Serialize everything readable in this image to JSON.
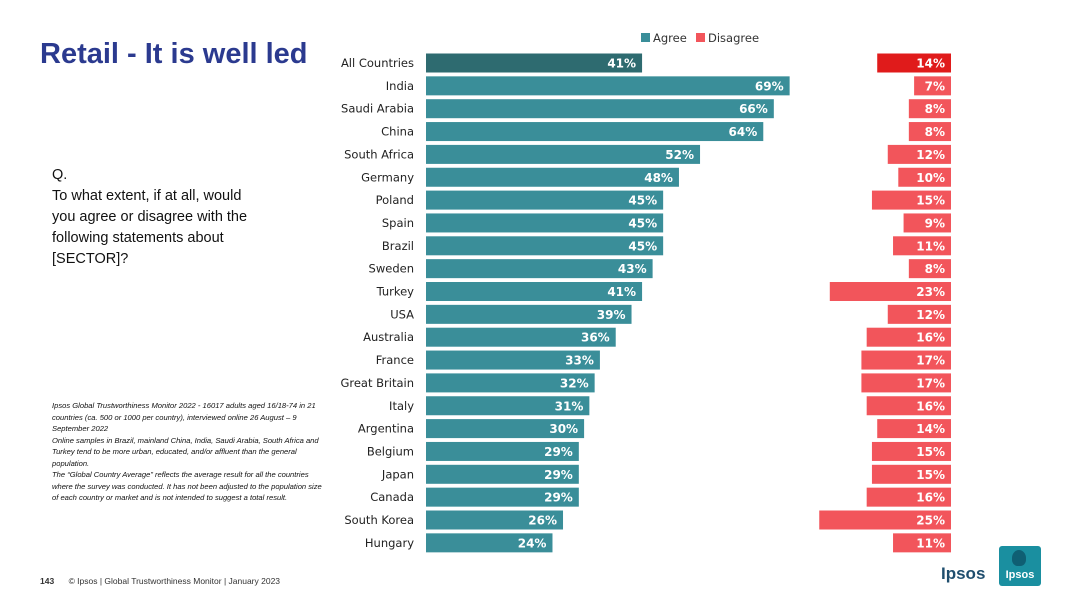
{
  "slide": {
    "title": "Retail - It is well led",
    "question": [
      "Q.",
      "To what extent, if at all, would",
      "you agree or disagree with the",
      "following statements about",
      "[SECTOR]?"
    ],
    "notes": [
      "Ipsos Global Trustworthiness Monitor 2022 - 16017 adults aged 16/18-74 in 21 countries (ca. 500 or 1000 per country), interviewed online 26 August – 9 September 2022",
      "Online samples in Brazil, mainland China, India, Saudi Arabia, South Africa and Turkey tend to be more urban, educated, and/or affluent than the general population.",
      "The “Global Country Average” reflects the average result for all the countries where the survey was conducted. It has not been adjusted to the population size of each country or market and is not intended to suggest a total result."
    ],
    "page_number": "143",
    "footer": "© Ipsos | Global Trustworthiness Monitor | January 2023",
    "logo_text": "Ipsos",
    "logo_badge": "Ipsos"
  },
  "colors": {
    "title": "#2b3a8f",
    "agree": "#3a8e99",
    "agree_highlight": "#2e6b70",
    "disagree": "#f2555b",
    "disagree_highlight": "#e01b1b"
  },
  "chart_data": {
    "type": "bar",
    "orientation": "horizontal",
    "categories": [
      "All Countries",
      "India",
      "Saudi Arabia",
      "China",
      "South Africa",
      "Germany",
      "Poland",
      "Spain",
      "Brazil",
      "Sweden",
      "Turkey",
      "USA",
      "Australia",
      "France",
      "Great Britain",
      "Italy",
      "Argentina",
      "Belgium",
      "Japan",
      "Canada",
      "South Korea",
      "Hungary"
    ],
    "series": [
      {
        "name": "Agree",
        "values": [
          41,
          69,
          66,
          64,
          52,
          48,
          45,
          45,
          45,
          43,
          41,
          39,
          36,
          33,
          32,
          31,
          30,
          29,
          29,
          29,
          26,
          24
        ]
      },
      {
        "name": "Disagree",
        "values": [
          14,
          7,
          8,
          8,
          12,
          10,
          15,
          9,
          11,
          8,
          23,
          12,
          16,
          17,
          17,
          16,
          14,
          15,
          15,
          16,
          25,
          11
        ]
      }
    ],
    "value_suffix": "%",
    "legend": [
      "Agree",
      "Disagree"
    ],
    "legend_position": "top",
    "highlight_category": "All Countries",
    "xlim": [
      0,
      100
    ]
  }
}
